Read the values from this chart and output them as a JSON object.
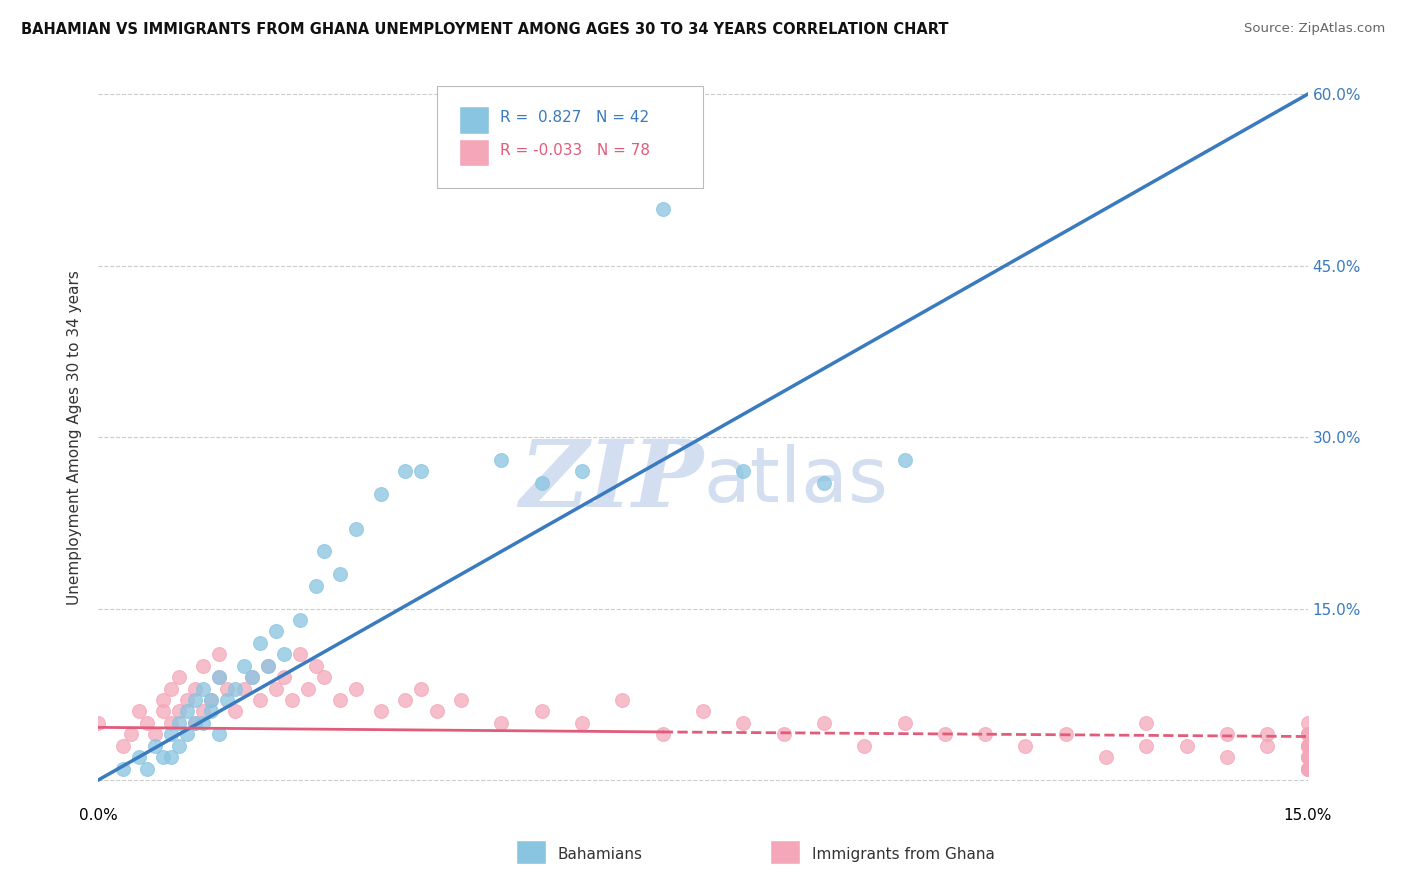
{
  "title": "BAHAMIAN VS IMMIGRANTS FROM GHANA UNEMPLOYMENT AMONG AGES 30 TO 34 YEARS CORRELATION CHART",
  "source": "Source: ZipAtlas.com",
  "ylabel": "Unemployment Among Ages 30 to 34 years",
  "bahamian_R": "0.827",
  "bahamian_N": "42",
  "ghana_R": "-0.033",
  "ghana_N": "78",
  "bahamian_color": "#89c4e1",
  "ghana_color": "#f4a7b9",
  "bahamian_line_color": "#3a7abf",
  "ghana_line_color": "#e05c7a",
  "background_color": "#ffffff",
  "grid_color": "#cccccc",
  "watermark_color": "#d3dff0",
  "xlim": [
    0.0,
    0.15
  ],
  "ylim": [
    -0.02,
    0.62
  ],
  "yticks": [
    0.0,
    0.15,
    0.3,
    0.45,
    0.6
  ],
  "bahamian_scatter_x": [
    0.003,
    0.005,
    0.006,
    0.007,
    0.008,
    0.009,
    0.009,
    0.01,
    0.01,
    0.011,
    0.011,
    0.012,
    0.012,
    0.013,
    0.013,
    0.014,
    0.014,
    0.015,
    0.015,
    0.016,
    0.017,
    0.018,
    0.019,
    0.02,
    0.021,
    0.022,
    0.023,
    0.025,
    0.027,
    0.028,
    0.03,
    0.032,
    0.035,
    0.038,
    0.04,
    0.05,
    0.055,
    0.06,
    0.07,
    0.08,
    0.09,
    0.1
  ],
  "bahamian_scatter_y": [
    0.01,
    0.02,
    0.01,
    0.03,
    0.02,
    0.04,
    0.02,
    0.03,
    0.05,
    0.04,
    0.06,
    0.05,
    0.07,
    0.05,
    0.08,
    0.06,
    0.07,
    0.04,
    0.09,
    0.07,
    0.08,
    0.1,
    0.09,
    0.12,
    0.1,
    0.13,
    0.11,
    0.14,
    0.17,
    0.2,
    0.18,
    0.22,
    0.25,
    0.27,
    0.27,
    0.28,
    0.26,
    0.27,
    0.5,
    0.27,
    0.26,
    0.28
  ],
  "ghana_scatter_x": [
    0.0,
    0.003,
    0.004,
    0.005,
    0.006,
    0.007,
    0.008,
    0.008,
    0.009,
    0.009,
    0.01,
    0.01,
    0.011,
    0.012,
    0.012,
    0.013,
    0.013,
    0.014,
    0.015,
    0.015,
    0.016,
    0.017,
    0.018,
    0.019,
    0.02,
    0.021,
    0.022,
    0.023,
    0.024,
    0.025,
    0.026,
    0.027,
    0.028,
    0.03,
    0.032,
    0.035,
    0.038,
    0.04,
    0.042,
    0.045,
    0.05,
    0.055,
    0.06,
    0.065,
    0.07,
    0.075,
    0.08,
    0.085,
    0.09,
    0.095,
    0.1,
    0.105,
    0.11,
    0.115,
    0.12,
    0.125,
    0.13,
    0.13,
    0.135,
    0.14,
    0.14,
    0.145,
    0.145,
    0.15,
    0.15,
    0.15,
    0.15,
    0.15,
    0.15,
    0.15,
    0.15,
    0.15,
    0.15,
    0.15,
    0.15,
    0.15,
    0.15,
    0.15
  ],
  "ghana_scatter_y": [
    0.05,
    0.03,
    0.04,
    0.06,
    0.05,
    0.04,
    0.06,
    0.07,
    0.05,
    0.08,
    0.06,
    0.09,
    0.07,
    0.05,
    0.08,
    0.06,
    0.1,
    0.07,
    0.09,
    0.11,
    0.08,
    0.06,
    0.08,
    0.09,
    0.07,
    0.1,
    0.08,
    0.09,
    0.07,
    0.11,
    0.08,
    0.1,
    0.09,
    0.07,
    0.08,
    0.06,
    0.07,
    0.08,
    0.06,
    0.07,
    0.05,
    0.06,
    0.05,
    0.07,
    0.04,
    0.06,
    0.05,
    0.04,
    0.05,
    0.03,
    0.05,
    0.04,
    0.04,
    0.03,
    0.04,
    0.02,
    0.03,
    0.05,
    0.03,
    0.04,
    0.02,
    0.03,
    0.04,
    0.01,
    0.02,
    0.04,
    0.03,
    0.05,
    0.01,
    0.03,
    0.02,
    0.04,
    0.01,
    0.03,
    0.02,
    0.04,
    0.01,
    0.03
  ],
  "bahamian_line_x": [
    0.0,
    0.15
  ],
  "bahamian_line_y": [
    0.0,
    0.6
  ],
  "ghana_line_x": [
    0.0,
    0.15
  ],
  "ghana_line_y": [
    0.046,
    0.038
  ]
}
